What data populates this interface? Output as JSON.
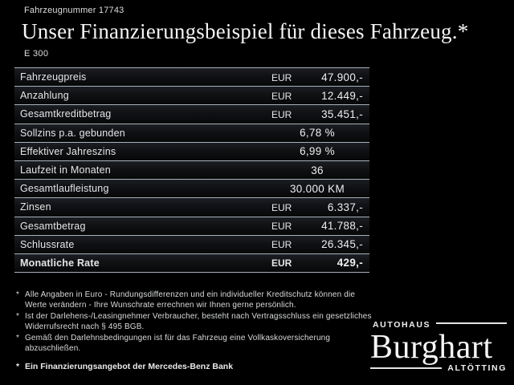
{
  "header": {
    "vehicle_number_label": "Fahrzeugnummer",
    "vehicle_number": "17743",
    "title": "Unser Finanzierungsbeispiel für dieses Fahrzeug.*",
    "model": "E 300"
  },
  "table": {
    "rows": [
      {
        "label": "Fahrzeugpreis",
        "currency": "EUR",
        "value": "47.900,-",
        "align": "right",
        "bold": false
      },
      {
        "label": "Anzahlung",
        "currency": "EUR",
        "value": "12.449,-",
        "align": "right",
        "bold": false
      },
      {
        "label": "Gesamtkreditbetrag",
        "currency": "EUR",
        "value": "35.451,-",
        "align": "right",
        "bold": false
      },
      {
        "label": "Sollzins p.a. gebunden",
        "currency": "",
        "value": "6,78 %",
        "align": "center",
        "bold": false
      },
      {
        "label": "Effektiver Jahreszins",
        "currency": "",
        "value": "6,99 %",
        "align": "center",
        "bold": false
      },
      {
        "label": "Laufzeit in Monaten",
        "currency": "",
        "value": "36",
        "align": "center",
        "bold": false
      },
      {
        "label": "Gesamtlaufleistung",
        "currency": "",
        "value": "30.000 KM",
        "align": "center",
        "bold": false
      },
      {
        "label": "Zinsen",
        "currency": "EUR",
        "value": "6.337,-",
        "align": "right",
        "bold": false
      },
      {
        "label": "Gesamtbetrag",
        "currency": "EUR",
        "value": "41.788,-",
        "align": "right",
        "bold": false
      },
      {
        "label": "Schlussrate",
        "currency": "EUR",
        "value": "26.345,-",
        "align": "right",
        "bold": false
      },
      {
        "label": "Monatliche Rate",
        "currency": "EUR",
        "value": "429,-",
        "align": "right",
        "bold": true
      }
    ]
  },
  "footnotes": [
    {
      "marker": "*",
      "text": "Alle Angaben in Euro - Rundungsdifferenzen und ein individueller Kreditschutz können die Werte verändern - Ihre Wunschrate errechnen wir Ihnen gerne persönlich."
    },
    {
      "marker": "*",
      "text": "Ist der Darlehens-/Leasingnehmer Verbraucher, besteht nach Vertragsschluss ein gesetzliches Widerrufsrecht nach § 495 BGB."
    },
    {
      "marker": "*",
      "text": "Gemäß den Darlehnsbedingungen ist für das Fahrzeug eine Vollkaskoversicherung abzuschließen."
    }
  ],
  "financing_note": {
    "marker": "*",
    "text": "Ein Finanzierungsangebot der Mercedes-Benz Bank"
  },
  "dealer_logo": {
    "top_text": "AUTOHAUS",
    "name": "Burghart",
    "bottom_text": "ALTÖTTING"
  },
  "colors": {
    "background": "#000000",
    "text": "#e8eaec",
    "separator_line": "#aab1ba",
    "row_gradient_top": "#1b1e23",
    "row_gradient_bottom": "#070808"
  }
}
